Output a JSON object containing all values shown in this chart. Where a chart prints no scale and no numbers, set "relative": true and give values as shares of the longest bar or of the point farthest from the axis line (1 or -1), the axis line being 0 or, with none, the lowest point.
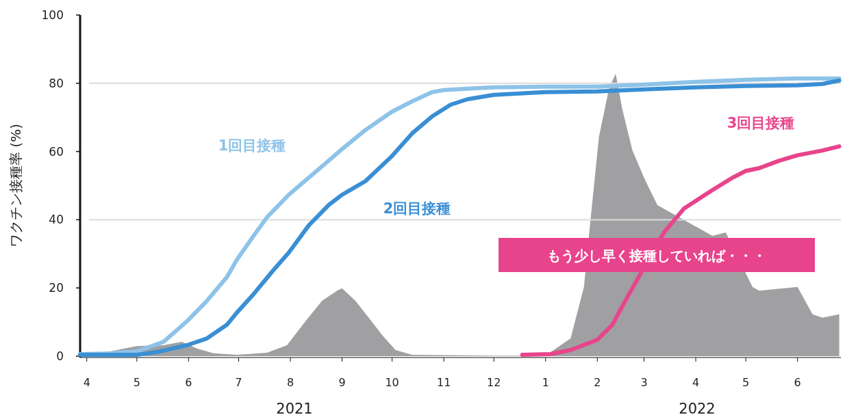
{
  "chart_data": [
    {
      "type": "line",
      "ylabel": "ワクチン接種率 (%)",
      "xlim": [
        "2021-03-28",
        "2022-06-27"
      ],
      "ylim": [
        0,
        100
      ],
      "xticks": [
        {
          "value": "2021-04",
          "label": "4"
        },
        {
          "value": "2021-05",
          "label": "5"
        },
        {
          "value": "2021-06",
          "label": "6"
        },
        {
          "value": "2021-07",
          "label": "7"
        },
        {
          "value": "2021-08",
          "label": "8"
        },
        {
          "value": "2021-09",
          "label": "9"
        },
        {
          "value": "2021-10",
          "label": "10"
        },
        {
          "value": "2021-11",
          "label": "11"
        },
        {
          "value": "2021-12",
          "label": "12"
        },
        {
          "value": "2022-01",
          "label": "1"
        },
        {
          "value": "2022-02",
          "label": "2"
        },
        {
          "value": "2022-03",
          "label": "3"
        },
        {
          "value": "2022-04",
          "label": "4"
        },
        {
          "value": "2022-05",
          "label": "5"
        },
        {
          "value": "2022-06",
          "label": "6"
        }
      ],
      "yticks": [
        0,
        20,
        40,
        60,
        80,
        100
      ],
      "ref_lines": [
        {
          "axis": "y",
          "value": 40,
          "color": "#dcdcdc"
        },
        {
          "axis": "y",
          "value": 80,
          "color": "#dcdcdc"
        }
      ],
      "annotations": [
        "もう少し早く接種していれば・・・",
        "2021",
        "2022"
      ],
      "series": [
        {
          "name": "1回目接種",
          "color": "#8ec3e8",
          "x": [
            "2021-03-28",
            "2021-04-15",
            "2021-05-01",
            "2021-05-17",
            "2021-05-31",
            "2021-06-12",
            "2021-06-24",
            "2021-06-30",
            "2021-07-10",
            "2021-07-18",
            "2021-07-31",
            "2021-08-12",
            "2021-08-24",
            "2021-09-01",
            "2021-09-15",
            "2021-10-01",
            "2021-10-13",
            "2021-10-25",
            "2021-11-01",
            "2021-11-15",
            "2021-12-01",
            "2022-01-01",
            "2022-02-01",
            "2022-03-01",
            "2022-04-01",
            "2022-05-01",
            "2022-06-01",
            "2022-06-26"
          ],
          "values": [
            0.6,
            0.8,
            1.4,
            4.2,
            10.2,
            16.2,
            23.2,
            28.3,
            35.3,
            40.7,
            47.3,
            52.3,
            57.3,
            60.7,
            66.3,
            71.7,
            74.7,
            77.4,
            78.0,
            78.4,
            78.8,
            79.0,
            79.0,
            79.6,
            80.4,
            81.0,
            81.4,
            81.4
          ]
        },
        {
          "name": "2回目接種",
          "color": "#3a8fd4",
          "x": [
            "2021-03-28",
            "2021-05-01",
            "2021-05-13",
            "2021-05-31",
            "2021-06-12",
            "2021-06-24",
            "2021-06-30",
            "2021-07-10",
            "2021-07-22",
            "2021-07-31",
            "2021-08-12",
            "2021-08-24",
            "2021-09-01",
            "2021-09-15",
            "2021-10-01",
            "2021-10-13",
            "2021-10-25",
            "2021-11-05",
            "2021-11-15",
            "2021-12-01",
            "2022-01-01",
            "2022-02-01",
            "2022-03-01",
            "2022-04-01",
            "2022-05-01",
            "2022-06-01",
            "2022-06-16",
            "2022-06-26"
          ],
          "values": [
            0.4,
            0.4,
            1.2,
            3.2,
            5.2,
            9.2,
            12.8,
            18.2,
            25.3,
            30.3,
            38.3,
            44.3,
            47.3,
            51.3,
            58.7,
            65.3,
            70.3,
            73.7,
            75.3,
            76.6,
            77.4,
            77.6,
            78.2,
            78.8,
            79.2,
            79.4,
            79.8,
            80.8
          ]
        },
        {
          "name": "3回目接種",
          "color": "#e8448c",
          "x": [
            "2021-12-18",
            "2022-01-04",
            "2022-01-16",
            "2022-02-01",
            "2022-02-10",
            "2022-02-20",
            "2022-03-13",
            "2022-03-25",
            "2022-04-11",
            "2022-04-23",
            "2022-05-01",
            "2022-05-09",
            "2022-05-21",
            "2022-06-01",
            "2022-06-16",
            "2022-06-26"
          ],
          "values": [
            0.4,
            0.6,
            1.8,
            4.8,
            9.2,
            18.2,
            36.3,
            43.3,
            48.7,
            52.3,
            54.3,
            55.1,
            57.3,
            58.9,
            60.3,
            61.5
          ]
        }
      ]
    },
    {
      "type": "area",
      "relative": true,
      "xlim": [
        "2021-03-28",
        "2022-06-27"
      ],
      "color": "#a0a0a2",
      "x": [
        "2021-03-28",
        "2021-04-15",
        "2021-05-01",
        "2021-05-17",
        "2021-05-28",
        "2021-06-06",
        "2021-06-16",
        "2021-06-30",
        "2021-07-18",
        "2021-07-30",
        "2021-08-10",
        "2021-08-20",
        "2021-08-29",
        "2021-09-01",
        "2021-09-09",
        "2021-09-17",
        "2021-09-25",
        "2021-10-03",
        "2021-10-13",
        "2021-12-01",
        "2022-01-01",
        "2022-01-16",
        "2022-01-24",
        "2022-01-28",
        "2022-02-02",
        "2022-02-08",
        "2022-02-12",
        "2022-02-16",
        "2022-02-22",
        "2022-03-01",
        "2022-03-09",
        "2022-04-11",
        "2022-04-19",
        "2022-05-05",
        "2022-05-09",
        "2022-06-01",
        "2022-06-10",
        "2022-06-16",
        "2022-06-26"
      ],
      "values": [
        0.005,
        0.017,
        0.036,
        0.039,
        0.051,
        0.027,
        0.01,
        0.005,
        0.012,
        0.039,
        0.123,
        0.196,
        0.232,
        0.24,
        0.196,
        0.136,
        0.075,
        0.022,
        0.005,
        0.002,
        0.002,
        0.063,
        0.245,
        0.487,
        0.777,
        0.947,
        1.0,
        0.874,
        0.729,
        0.632,
        0.535,
        0.426,
        0.438,
        0.245,
        0.232,
        0.245,
        0.148,
        0.136,
        0.148
      ]
    }
  ]
}
